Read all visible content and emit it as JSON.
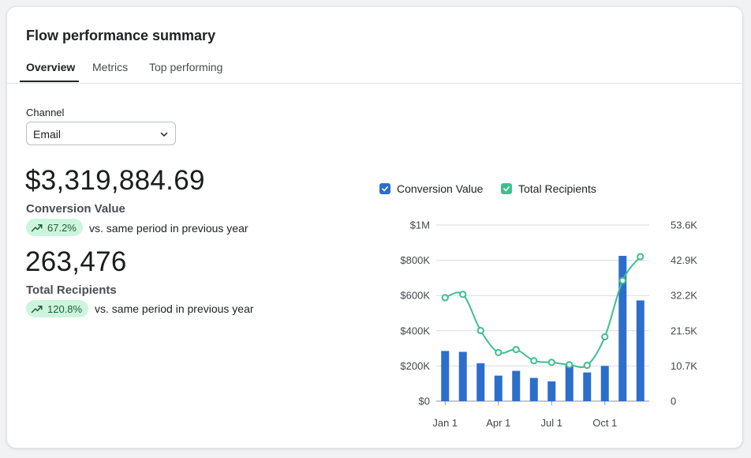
{
  "card": {
    "title": "Flow performance summary",
    "tabs": [
      {
        "label": "Overview",
        "active": true
      },
      {
        "label": "Metrics",
        "active": false
      },
      {
        "label": "Top performing",
        "active": false
      }
    ]
  },
  "channel": {
    "label": "Channel",
    "value": "Email"
  },
  "kpis": [
    {
      "value": "$3,319,884.69",
      "label": "Conversion Value",
      "change": "67.2%",
      "comparison": "vs. same period in previous year"
    },
    {
      "value": "263,476",
      "label": "Total Recipients",
      "change": "120.8%",
      "comparison": "vs. same period in previous year"
    }
  ],
  "colors": {
    "bar": "#2c6ecb",
    "line": "#3fbf8f",
    "badge_bg": "#cdf5dd",
    "badge_text": "#1f5e3c"
  },
  "chart_data": {
    "type": "bar",
    "legend": [
      "Conversion Value",
      "Total Recipients"
    ],
    "legend_position": "top",
    "grid": true,
    "x_tick_labels": [
      "Jan 1",
      "Apr 1",
      "Jul 1",
      "Oct 1"
    ],
    "y_left_ticks": [
      "$0",
      "$200K",
      "$400K",
      "$600K",
      "$800K",
      "$1M"
    ],
    "y_right_ticks": [
      "0",
      "10.7K",
      "21.5K",
      "32.2K",
      "42.9K",
      "53.6K"
    ],
    "ylim_left": [
      0,
      1000000
    ],
    "ylim_right": [
      0,
      53600
    ],
    "series": [
      {
        "name": "Conversion Value",
        "type": "bar",
        "axis": "left",
        "values": [
          285000,
          280000,
          215000,
          145000,
          172000,
          132000,
          112000,
          205000,
          163000,
          200000,
          825000,
          572000
        ]
      },
      {
        "name": "Total Recipients",
        "type": "line",
        "axis": "right",
        "values": [
          31500,
          32500,
          21500,
          14800,
          15700,
          12300,
          11800,
          11100,
          10900,
          19600,
          36700,
          44000
        ]
      }
    ]
  }
}
